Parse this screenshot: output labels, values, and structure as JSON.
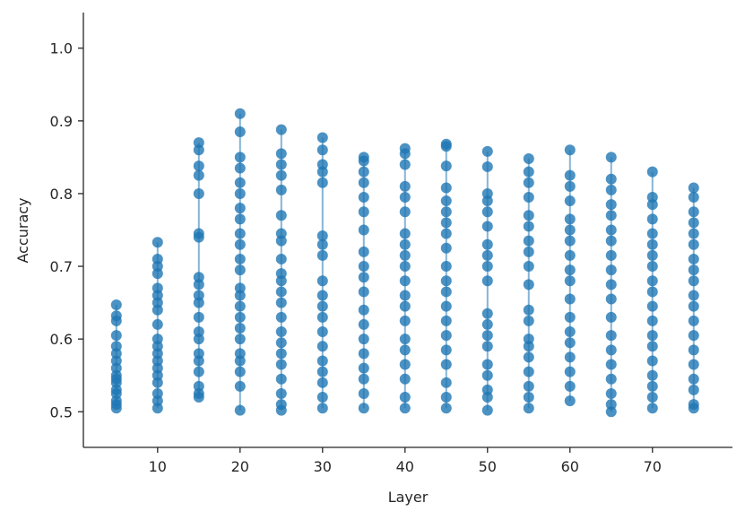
{
  "chart_data": {
    "type": "scatter",
    "x_label": "Layer",
    "y_label": "Accuracy",
    "color": "#1f77b4",
    "x": [
      5,
      10,
      15,
      20,
      25,
      30,
      35,
      40,
      45,
      50,
      55,
      60,
      65,
      70,
      75
    ],
    "values": [
      [
        0.647,
        0.632,
        0.625,
        0.605,
        0.59,
        0.58,
        0.57,
        0.56,
        0.55,
        0.545,
        0.54,
        0.53,
        0.525,
        0.515,
        0.51,
        0.505
      ],
      [
        0.733,
        0.71,
        0.7,
        0.69,
        0.67,
        0.66,
        0.65,
        0.64,
        0.62,
        0.6,
        0.59,
        0.58,
        0.57,
        0.56,
        0.55,
        0.54,
        0.525,
        0.515,
        0.505
      ],
      [
        0.87,
        0.86,
        0.838,
        0.825,
        0.8,
        0.745,
        0.74,
        0.685,
        0.675,
        0.66,
        0.65,
        0.63,
        0.61,
        0.6,
        0.58,
        0.57,
        0.555,
        0.535,
        0.525,
        0.52
      ],
      [
        0.91,
        0.885,
        0.85,
        0.835,
        0.815,
        0.8,
        0.78,
        0.765,
        0.745,
        0.73,
        0.71,
        0.695,
        0.67,
        0.66,
        0.645,
        0.63,
        0.615,
        0.6,
        0.58,
        0.57,
        0.555,
        0.535,
        0.502
      ],
      [
        0.888,
        0.855,
        0.84,
        0.825,
        0.805,
        0.77,
        0.745,
        0.735,
        0.71,
        0.69,
        0.68,
        0.665,
        0.65,
        0.63,
        0.61,
        0.595,
        0.58,
        0.565,
        0.545,
        0.525,
        0.51,
        0.502
      ],
      [
        0.877,
        0.86,
        0.84,
        0.83,
        0.815,
        0.742,
        0.73,
        0.715,
        0.68,
        0.66,
        0.645,
        0.63,
        0.61,
        0.59,
        0.57,
        0.555,
        0.54,
        0.52,
        0.505
      ],
      [
        0.85,
        0.845,
        0.83,
        0.815,
        0.795,
        0.775,
        0.75,
        0.72,
        0.7,
        0.685,
        0.665,
        0.64,
        0.62,
        0.6,
        0.58,
        0.56,
        0.545,
        0.525,
        0.505
      ],
      [
        0.862,
        0.855,
        0.84,
        0.81,
        0.795,
        0.775,
        0.745,
        0.73,
        0.715,
        0.7,
        0.68,
        0.66,
        0.645,
        0.625,
        0.6,
        0.585,
        0.565,
        0.545,
        0.52,
        0.505
      ],
      [
        0.868,
        0.865,
        0.838,
        0.808,
        0.79,
        0.775,
        0.76,
        0.745,
        0.725,
        0.7,
        0.68,
        0.665,
        0.645,
        0.625,
        0.605,
        0.585,
        0.565,
        0.54,
        0.52,
        0.505
      ],
      [
        0.858,
        0.837,
        0.8,
        0.79,
        0.775,
        0.755,
        0.73,
        0.715,
        0.7,
        0.68,
        0.635,
        0.62,
        0.605,
        0.59,
        0.565,
        0.55,
        0.53,
        0.52,
        0.502
      ],
      [
        0.848,
        0.83,
        0.815,
        0.795,
        0.77,
        0.755,
        0.735,
        0.72,
        0.7,
        0.675,
        0.64,
        0.625,
        0.6,
        0.59,
        0.575,
        0.555,
        0.535,
        0.52,
        0.505
      ],
      [
        0.86,
        0.825,
        0.81,
        0.79,
        0.765,
        0.75,
        0.735,
        0.715,
        0.695,
        0.68,
        0.655,
        0.63,
        0.61,
        0.595,
        0.575,
        0.555,
        0.535,
        0.515
      ],
      [
        0.85,
        0.82,
        0.805,
        0.785,
        0.77,
        0.75,
        0.735,
        0.715,
        0.695,
        0.675,
        0.655,
        0.63,
        0.605,
        0.585,
        0.565,
        0.545,
        0.525,
        0.51,
        0.5
      ],
      [
        0.83,
        0.795,
        0.785,
        0.765,
        0.745,
        0.73,
        0.715,
        0.7,
        0.68,
        0.665,
        0.645,
        0.625,
        0.605,
        0.59,
        0.57,
        0.55,
        0.535,
        0.52,
        0.505
      ],
      [
        0.808,
        0.795,
        0.775,
        0.76,
        0.745,
        0.73,
        0.71,
        0.695,
        0.68,
        0.66,
        0.645,
        0.625,
        0.605,
        0.585,
        0.565,
        0.545,
        0.53,
        0.51,
        0.505
      ]
    ],
    "xlim": [
      1,
      79.7
    ],
    "ylim": [
      0.451,
      1.049
    ],
    "xticks": [
      10,
      20,
      30,
      40,
      50,
      60,
      70
    ],
    "yticks": [
      0.5,
      0.6,
      0.7,
      0.8,
      0.9,
      {
        "value": 1,
        "label": "1.0"
      }
    ]
  }
}
